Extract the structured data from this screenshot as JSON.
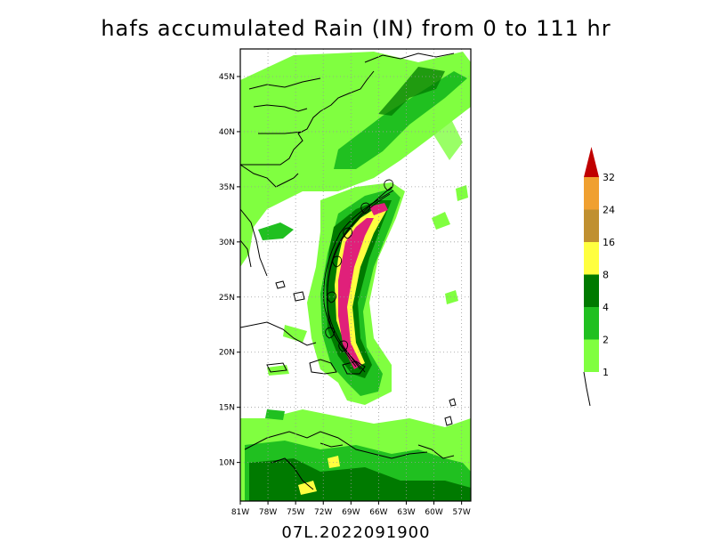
{
  "title": "hafs accumulated Rain (IN) from 0 to 111 hr",
  "footer": "07L.2022091900",
  "map": {
    "lat_labels": [
      "45N",
      "40N",
      "35N",
      "30N",
      "25N",
      "20N",
      "15N",
      "10N"
    ],
    "lon_labels": [
      "81W",
      "78W",
      "75W",
      "72W",
      "69W",
      "66W",
      "63W",
      "60W",
      "57W"
    ],
    "lat_range": [
      6.5,
      47.5
    ],
    "lon_range": [
      -81,
      -56
    ]
  },
  "colorbar": {
    "labels": [
      "1",
      "2",
      "4",
      "8",
      "16",
      "24",
      "32"
    ],
    "colors": [
      "#80ff40",
      "#20c020",
      "#007a00",
      "#ffff40",
      "#c09030",
      "#f0a030",
      "#c00000"
    ]
  },
  "colors": {
    "rain_light": "#80ff40",
    "rain_medium": "#20c020",
    "rain_heavy": "#007a00",
    "rain_yellow": "#ffff40",
    "rain_magenta": "#e0207a",
    "coastline": "#000000",
    "grid": "#9a9a9a"
  }
}
